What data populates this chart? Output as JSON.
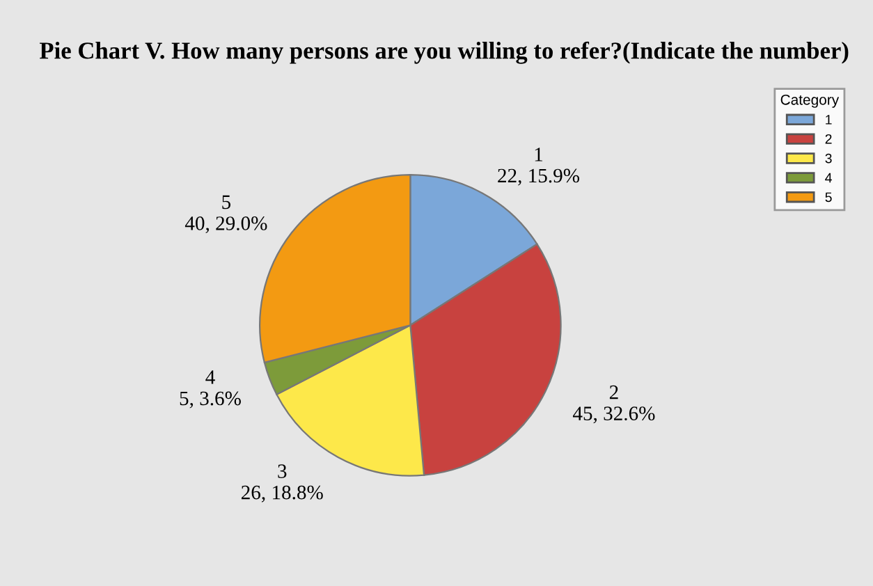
{
  "chart_data": {
    "type": "pie",
    "title": "Pie Chart V. How many persons are you willing to refer?(Indicate the number)",
    "legend_title": "Category",
    "categories": [
      "1",
      "2",
      "3",
      "4",
      "5"
    ],
    "values": [
      22,
      45,
      26,
      5,
      40
    ],
    "value_labels": [
      "22, 15.9%",
      "45, 32.6%",
      "26, 18.8%",
      "5, 3.6%",
      "40, 29.0%"
    ],
    "colors": [
      "#7ba7d9",
      "#c8423f",
      "#fde84a",
      "#7d9b3a",
      "#f39a12"
    ],
    "legend": "top right"
  }
}
